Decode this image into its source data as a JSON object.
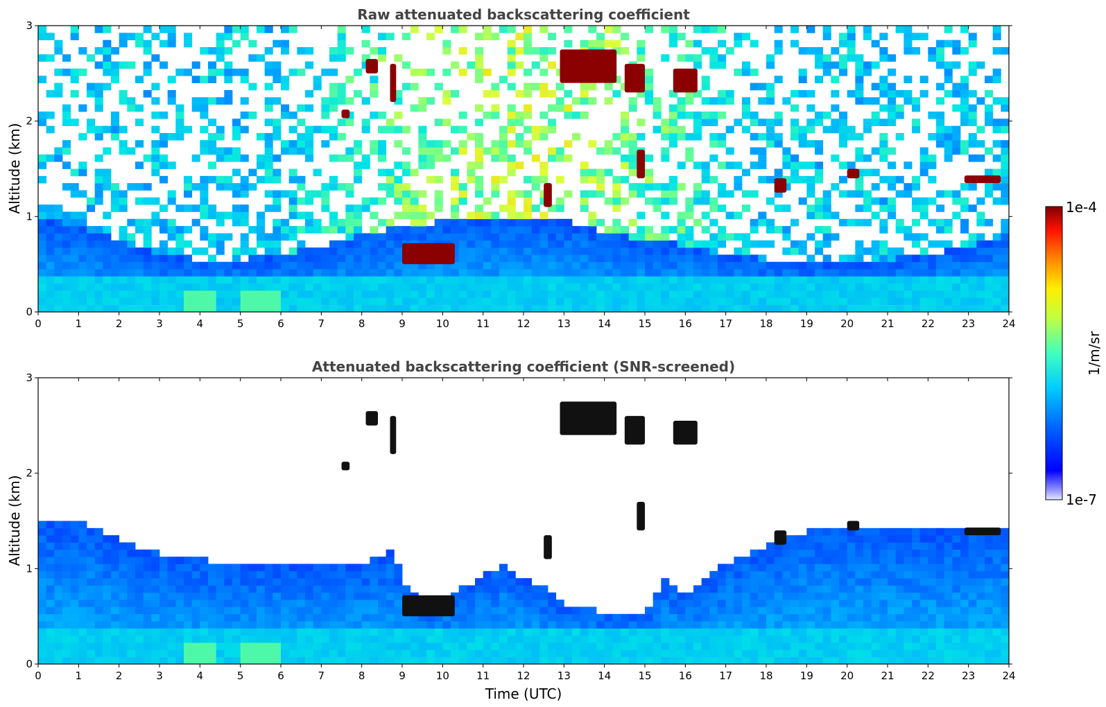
{
  "chart_data": [
    {
      "type": "heatmap",
      "title": "Raw attenuated backscattering coefficient",
      "xlabel": "",
      "ylabel": "Altitude (km)",
      "xlim": [
        0,
        24
      ],
      "ylim": [
        0,
        3
      ],
      "xticks": [
        "0",
        "1",
        "2",
        "3",
        "4",
        "5",
        "6",
        "7",
        "8",
        "9",
        "10",
        "11",
        "12",
        "13",
        "14",
        "15",
        "16",
        "17",
        "18",
        "19",
        "20",
        "21",
        "22",
        "23",
        "24"
      ],
      "yticks": [
        "0",
        "1",
        "2",
        "3"
      ],
      "screened": false,
      "boundary_layer_top_km": [
        [
          0,
          1.0
        ],
        [
          1,
          0.9
        ],
        [
          2,
          0.75
        ],
        [
          3,
          0.6
        ],
        [
          4,
          0.55
        ],
        [
          5,
          0.55
        ],
        [
          6,
          0.6
        ],
        [
          7,
          0.7
        ],
        [
          8,
          0.8
        ],
        [
          9,
          0.9
        ],
        [
          10,
          0.95
        ],
        [
          11,
          1.0
        ],
        [
          12,
          1.0
        ],
        [
          13,
          0.95
        ],
        [
          14,
          0.85
        ],
        [
          15,
          0.75
        ],
        [
          16,
          0.7
        ],
        [
          17,
          0.6
        ],
        [
          18,
          0.55
        ],
        [
          19,
          0.5
        ],
        [
          20,
          0.5
        ],
        [
          21,
          0.55
        ],
        [
          22,
          0.6
        ],
        [
          23,
          0.7
        ],
        [
          24,
          0.8
        ]
      ],
      "cloud_features": [
        {
          "x0": 8.1,
          "x1": 8.4,
          "y0": 2.5,
          "y1": 2.65
        },
        {
          "x0": 8.7,
          "x1": 8.85,
          "y0": 2.2,
          "y1": 2.6
        },
        {
          "x0": 7.5,
          "x1": 7.7,
          "y0": 2.03,
          "y1": 2.12
        },
        {
          "x0": 9.0,
          "x1": 10.3,
          "y0": 0.5,
          "y1": 0.72
        },
        {
          "x0": 12.9,
          "x1": 14.3,
          "y0": 2.4,
          "y1": 2.75
        },
        {
          "x0": 14.5,
          "x1": 15.0,
          "y0": 2.3,
          "y1": 2.6
        },
        {
          "x0": 15.7,
          "x1": 16.3,
          "y0": 2.3,
          "y1": 2.55
        },
        {
          "x0": 14.8,
          "x1": 15.0,
          "y0": 1.4,
          "y1": 1.7
        },
        {
          "x0": 12.5,
          "x1": 12.7,
          "y0": 1.1,
          "y1": 1.35
        },
        {
          "x0": 18.2,
          "x1": 18.5,
          "y0": 1.25,
          "y1": 1.4
        },
        {
          "x0": 20.0,
          "x1": 20.3,
          "y0": 1.4,
          "y1": 1.5
        },
        {
          "x0": 22.9,
          "x1": 23.8,
          "y0": 1.35,
          "y1": 1.43
        }
      ]
    },
    {
      "type": "heatmap",
      "title": "Attenuated backscattering coefficient (SNR-screened)",
      "xlabel": "Time (UTC)",
      "ylabel": "Altitude (km)",
      "xlim": [
        0,
        24
      ],
      "ylim": [
        0,
        3
      ],
      "xticks": [
        "0",
        "1",
        "2",
        "3",
        "4",
        "5",
        "6",
        "7",
        "8",
        "9",
        "10",
        "11",
        "12",
        "13",
        "14",
        "15",
        "16",
        "17",
        "18",
        "19",
        "20",
        "21",
        "22",
        "23",
        "24"
      ],
      "yticks": [
        "0",
        "1",
        "2",
        "3"
      ],
      "screened": true,
      "signal_top_km": [
        [
          0,
          1.5
        ],
        [
          1,
          1.5
        ],
        [
          2,
          1.3
        ],
        [
          3,
          1.15
        ],
        [
          4,
          1.1
        ],
        [
          5,
          1.05
        ],
        [
          6,
          1.05
        ],
        [
          7,
          1.05
        ],
        [
          8,
          1.05
        ],
        [
          8.8,
          1.2
        ],
        [
          9,
          0.9
        ],
        [
          9.5,
          0.6
        ],
        [
          10,
          0.65
        ],
        [
          10.5,
          0.8
        ],
        [
          11,
          0.95
        ],
        [
          11.5,
          1.05
        ],
        [
          12,
          0.9
        ],
        [
          12.5,
          0.8
        ],
        [
          13,
          0.6
        ],
        [
          14,
          0.55
        ],
        [
          15,
          0.55
        ],
        [
          15.5,
          0.9
        ],
        [
          16,
          0.75
        ],
        [
          16.5,
          0.9
        ],
        [
          17,
          1.05
        ],
        [
          18,
          1.25
        ],
        [
          19,
          1.4
        ],
        [
          20,
          1.45
        ],
        [
          21,
          1.45
        ],
        [
          22,
          1.4
        ],
        [
          23,
          1.4
        ],
        [
          24,
          1.4
        ]
      ]
    }
  ],
  "colorbar": {
    "label": "1/m/sr",
    "max_label": "1e-4",
    "min_label": "1e-7",
    "scale": "log",
    "colormap": "jet"
  }
}
